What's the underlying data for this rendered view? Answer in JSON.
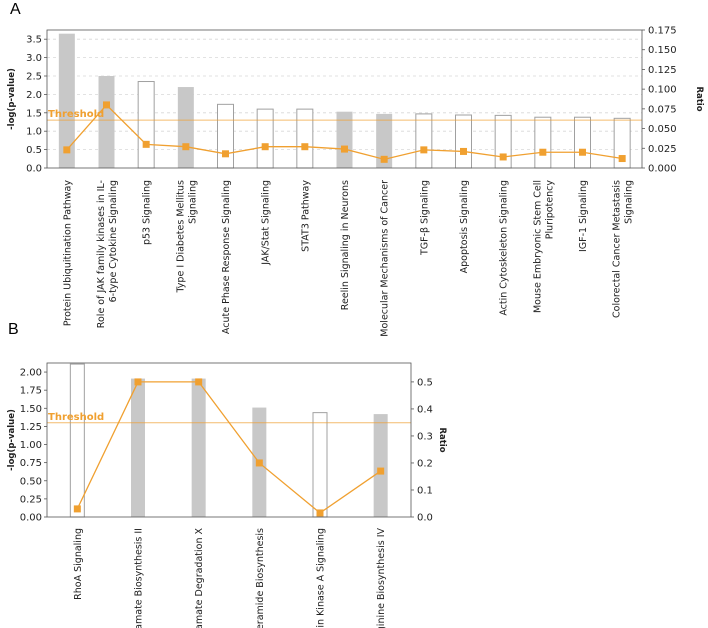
{
  "colors": {
    "bar_fill": "#c8c8c8",
    "bar_outline": "#a0a0a0",
    "ratio_line": "#f0a030",
    "threshold": "#f0a030",
    "grid": "#d8d8d8"
  },
  "chart_data": [
    {
      "panel_label": "A",
      "type": "bar",
      "threshold_label": "Threshold",
      "threshold": 1.3,
      "ylabel": "-log(p-value)",
      "y2label": "Ratio",
      "ylim": [
        0,
        3.75
      ],
      "yticks": [
        "0.0",
        "0.5",
        "1.0",
        "1.5",
        "2.0",
        "2.5",
        "3.0",
        "3.5"
      ],
      "y2lim": [
        0,
        0.175
      ],
      "y2ticks": [
        "0.000",
        "0.025",
        "0.050",
        "0.075",
        "0.100",
        "0.125",
        "0.150",
        "0.175"
      ],
      "grid": true,
      "categories": [
        [
          "Protein Ubiquitination Pathway"
        ],
        [
          "Role of JAK family kinases in IL-",
          "6-type Cytokine Signaling"
        ],
        [
          "p53 Signaling"
        ],
        [
          "Type I Diabetes Mellitus",
          "Signaling"
        ],
        [
          "Acute Phase Response Signaling"
        ],
        [
          "JAK/Stat Signaling"
        ],
        [
          "STAT3 Pathway"
        ],
        [
          "Reelin Signaling in Neurons"
        ],
        [
          "Molecular Mechanisms of Cancer"
        ],
        [
          "TGF-β Signaling"
        ],
        [
          "Apoptosis Signaling"
        ],
        [
          "Actin Cytoskeleton Signaling"
        ],
        [
          "Mouse Embryonic Stem Cell",
          "Pluripotency"
        ],
        [
          "IGF-1 Signaling"
        ],
        [
          "Colorectal Cancer Metastasis",
          "Signaling"
        ]
      ],
      "series": [
        {
          "values": [
            3.65,
            2.5,
            2.35,
            2.2,
            1.73,
            1.6,
            1.6,
            1.53,
            1.47,
            1.47,
            1.44,
            1.43,
            1.38,
            1.38,
            1.35
          ],
          "filled": [
            true,
            true,
            false,
            true,
            false,
            false,
            false,
            true,
            true,
            false,
            false,
            false,
            false,
            false,
            false
          ]
        },
        {
          "values": [
            0.023,
            0.08,
            0.03,
            0.027,
            0.018,
            0.027,
            0.027,
            0.024,
            0.011,
            0.023,
            0.021,
            0.014,
            0.02,
            0.02,
            0.012
          ]
        }
      ]
    },
    {
      "panel_label": "B",
      "type": "bar",
      "threshold_label": "Threshold",
      "threshold": 1.3,
      "ylabel": "-log(p-value)",
      "y2label": "Ratio",
      "ylim": [
        0,
        2.125
      ],
      "yticks": [
        "0.00",
        "0.25",
        "0.50",
        "0.75",
        "1.00",
        "1.25",
        "1.50",
        "1.75",
        "2.00"
      ],
      "y2lim": [
        0,
        0.57
      ],
      "y2ticks": [
        "0.0",
        "0.1",
        "0.2",
        "0.3",
        "0.4",
        "0.5"
      ],
      "grid": false,
      "categories": [
        [
          "RhoA Signaling"
        ],
        [
          "Glutamate Biosynthesis II"
        ],
        [
          "Glutamate Degradation X"
        ],
        [
          "Ceramide Biosynthesis"
        ],
        [
          "Protein Kinase A Signaling"
        ],
        [
          "Arginine Biosynthesis IV"
        ]
      ],
      "series": [
        {
          "values": [
            2.11,
            1.91,
            1.91,
            1.51,
            1.44,
            1.42
          ],
          "filled": [
            false,
            true,
            true,
            true,
            false,
            true
          ]
        },
        {
          "values": [
            0.03,
            0.5,
            0.5,
            0.2,
            0.015,
            0.17
          ]
        }
      ]
    }
  ]
}
